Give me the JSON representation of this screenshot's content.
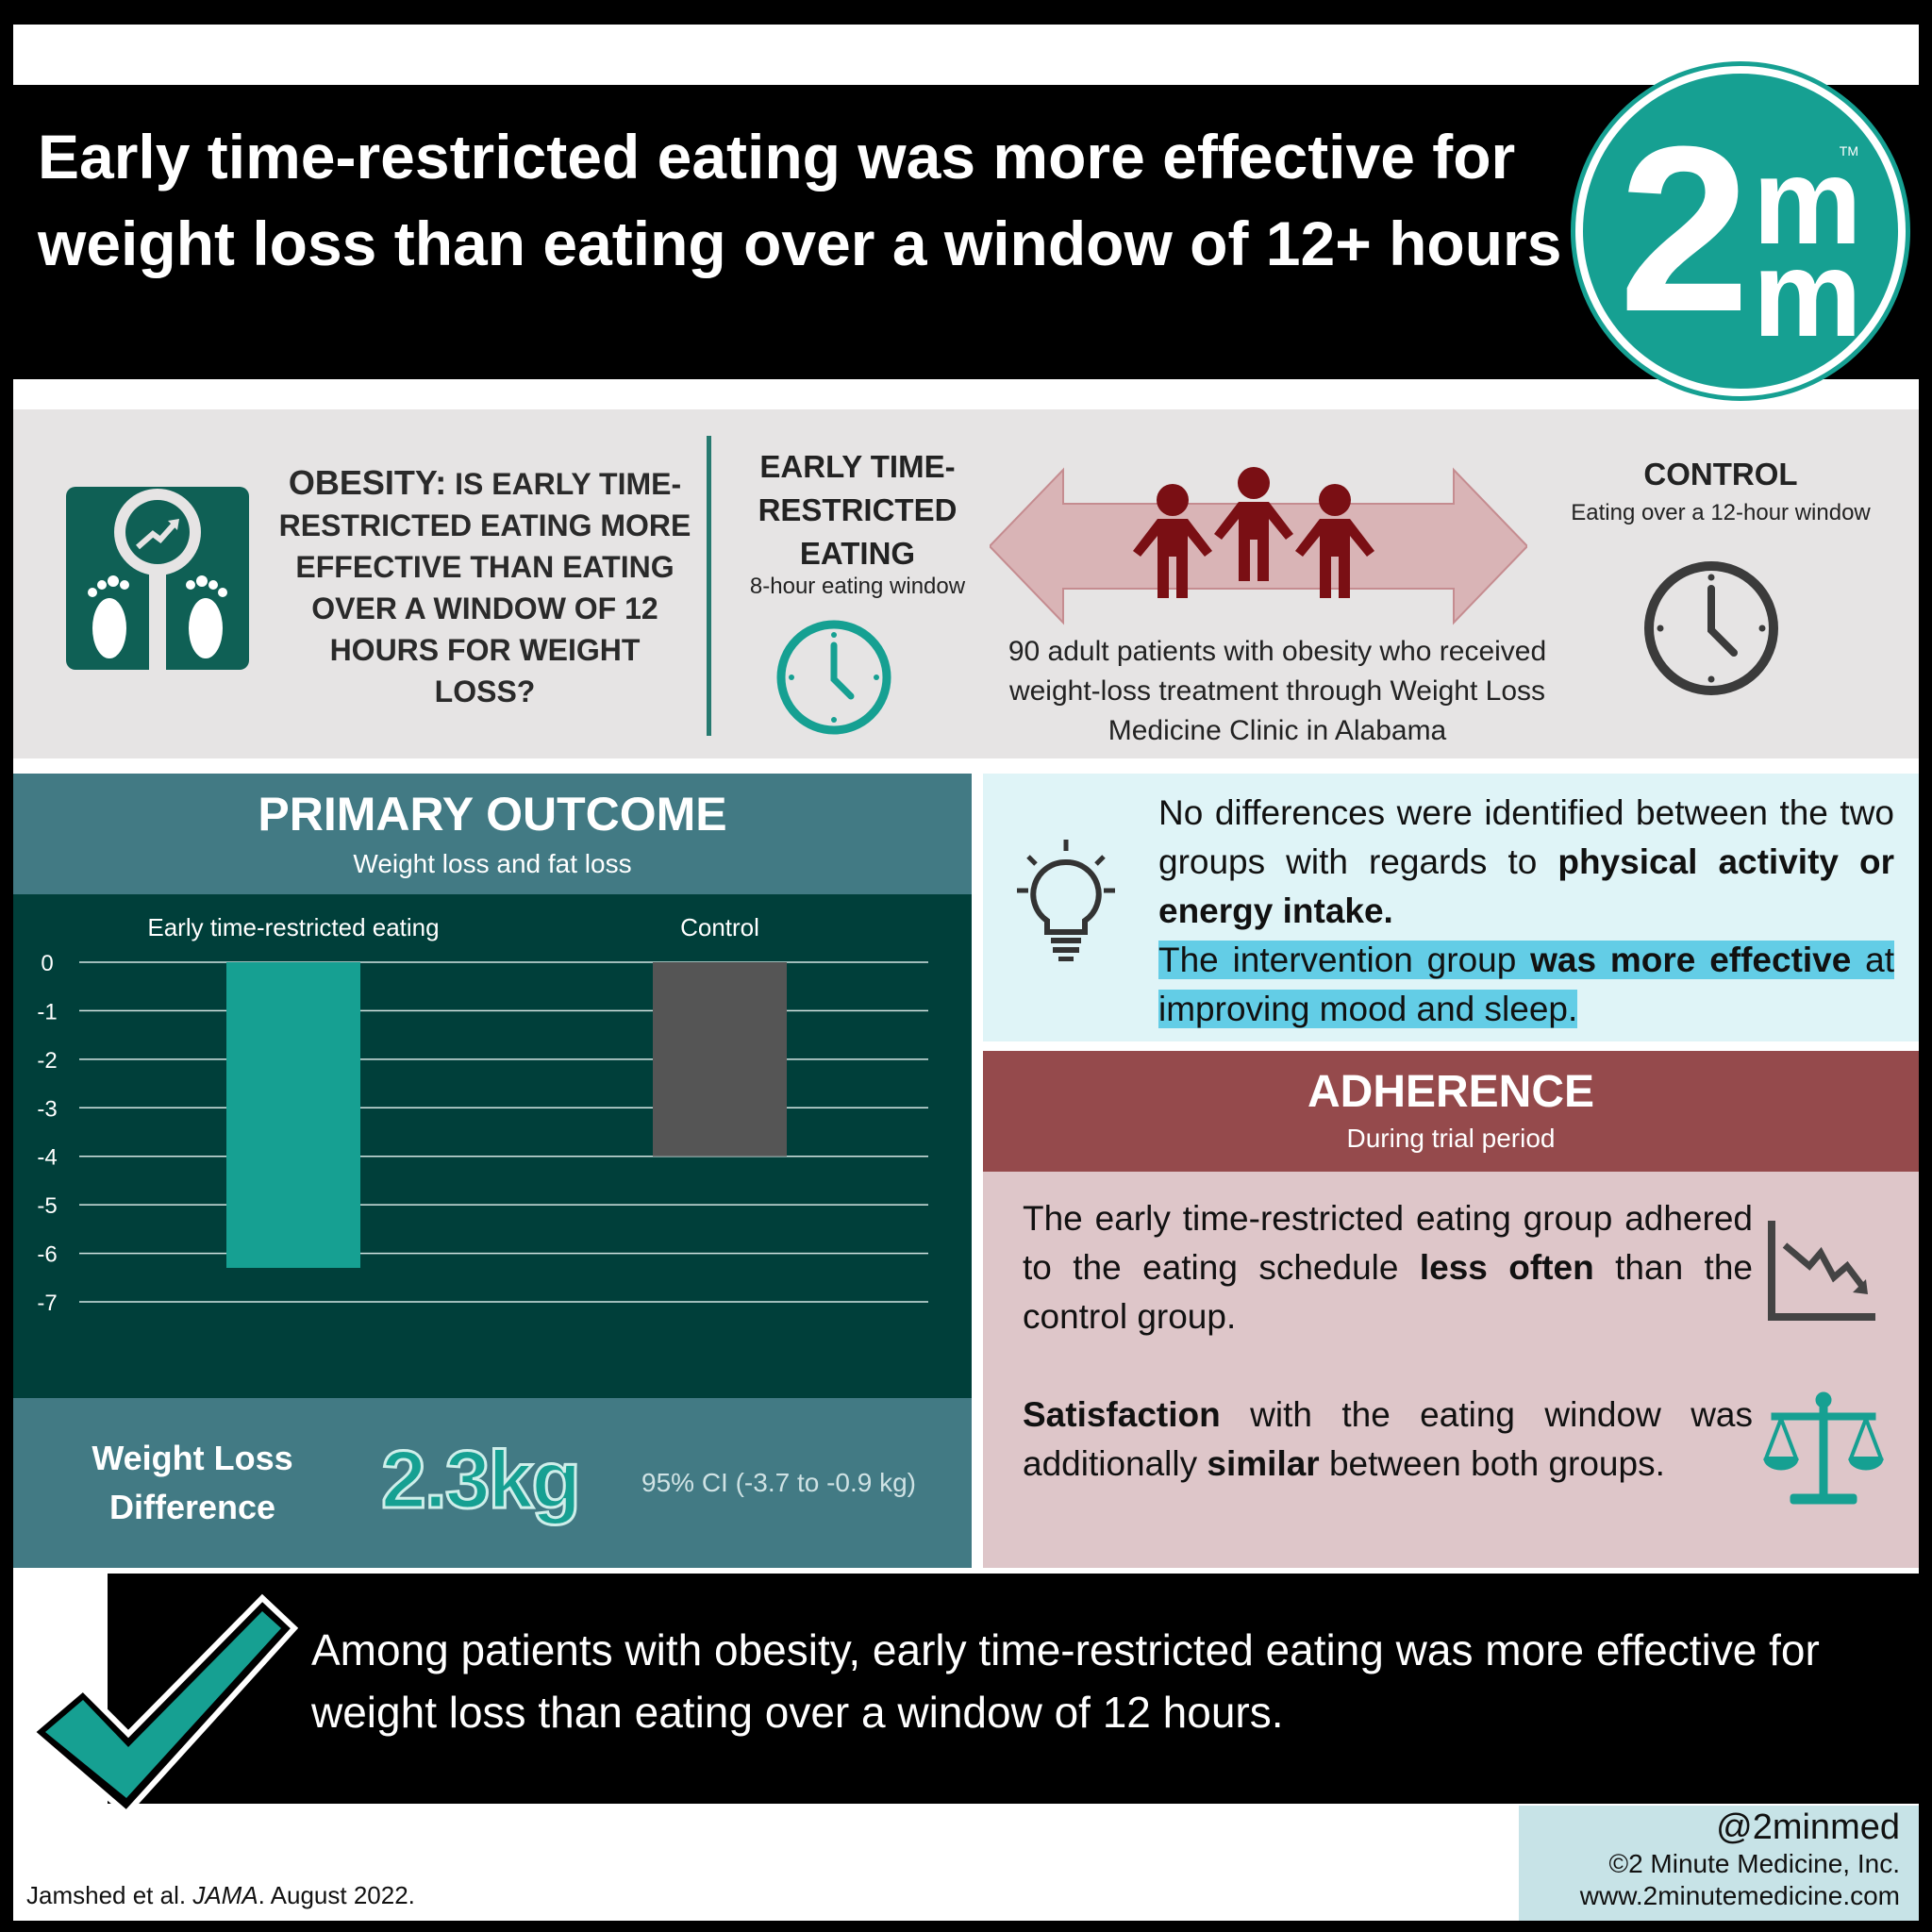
{
  "header": {
    "title": "Early time-restricted eating was more effective for weight loss than eating over a window of 12+ hours"
  },
  "logo": {
    "main": "2",
    "m1": "m",
    "m2": "m",
    "tm": "TM"
  },
  "question": {
    "lead": "OBESITY:",
    "text": "IS EARLY TIME-RESTRICTED EATING MORE EFFECTIVE THAN EATING OVER A WINDOW OF 12 HOURS FOR WEIGHT LOSS?"
  },
  "intervention": {
    "title": "EARLY TIME-RESTRICTED EATING",
    "subtitle": "8-hour eating window"
  },
  "population": {
    "text": "90 adult patients with obesity who received weight-loss treatment through Weight Loss Medicine Clinic in Alabama"
  },
  "control": {
    "title": "CONTROL",
    "subtitle": "Eating over a 12-hour window"
  },
  "primary_outcome": {
    "title": "PRIMARY OUTCOME",
    "subtitle": "Weight loss and fat loss",
    "difference_label": "Weight Loss Difference",
    "difference_value": "2.3kg",
    "ci": "95% CI (-3.7 to -0.9 kg)"
  },
  "chart_data": {
    "type": "bar",
    "categories": [
      "Early time-restricted eating",
      "Control"
    ],
    "values": [
      -6.3,
      -4.0
    ],
    "colors": [
      "#16a092",
      "#555555"
    ],
    "ylim": [
      -7,
      0
    ],
    "yticks": [
      "0",
      "-1",
      "-2",
      "-3",
      "-4",
      "-5",
      "-6",
      "-7"
    ],
    "grid": true
  },
  "findings": {
    "p1_a": "No differences were identified between the two groups with regards to ",
    "p1_b": "physical activity or energy intake.",
    "p2_a": "The intervention group ",
    "p2_b": "was more effective",
    "p2_c": " at improving mood and sleep."
  },
  "adherence": {
    "title": "ADHERENCE",
    "subtitle": "During trial period",
    "p1_a": "The early time-restricted eating group adhered to the eating schedule ",
    "p1_b": "less often",
    "p1_c": " than the control group.",
    "p2_a": "Satisfaction",
    "p2_b": " with the eating window was additionally ",
    "p2_c": "similar",
    "p2_d": " between both groups."
  },
  "conclusion": "Among patients with obesity, early time-restricted eating was more effective for weight loss than eating over a window of 12 hours.",
  "citation": {
    "authors": "Jamshed et al. ",
    "journal": "JAMA",
    "date": ". August 2022."
  },
  "brand": {
    "handle": "@2minmed",
    "copyright": "©2 Minute Medicine, Inc.",
    "url": "www.2minutemedicine.com"
  },
  "colors": {
    "teal": "#16a092",
    "dark_teal": "#003f3a",
    "slate": "#427a84",
    "maroon": "#954a4c",
    "rose": "#dec6c9",
    "light_blue": "#dff4f7"
  },
  "icons": [
    "bathroom-scale-icon",
    "clock-icon",
    "double-arrow-icon",
    "people-icon",
    "lightbulb-icon",
    "trend-down-icon",
    "balance-scale-icon",
    "checkmark-icon"
  ]
}
